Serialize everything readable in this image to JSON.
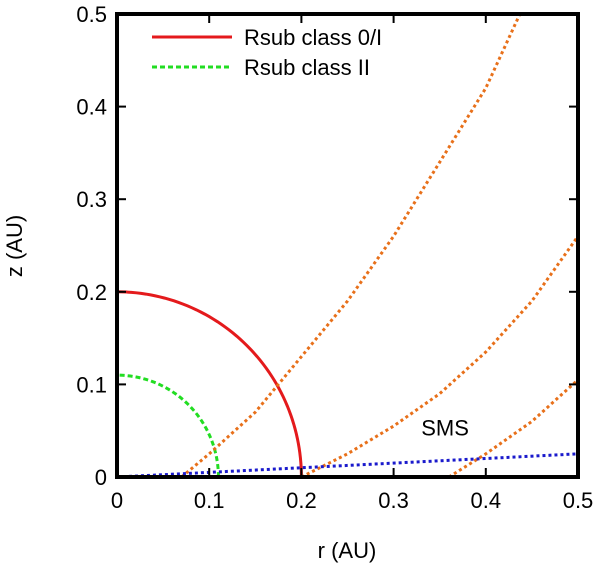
{
  "chart_data": {
    "type": "line",
    "title": "",
    "xlabel": "r (AU)",
    "ylabel": "z (AU)",
    "xlim": [
      0,
      0.5
    ],
    "ylim": [
      0,
      0.5
    ],
    "x_ticks": [
      "0",
      "0.1",
      "0.2",
      "0.3",
      "0.4",
      "0.5"
    ],
    "y_ticks": [
      "0",
      "0.1",
      "0.2",
      "0.3",
      "0.4",
      "0.5"
    ],
    "grid": false,
    "legend_position": "top-left",
    "series": [
      {
        "name": "Rsub class 0/I",
        "shape": "quarter-circle",
        "radius": 0.2,
        "color": "#e41a1c",
        "dash": "solid",
        "in_legend": true
      },
      {
        "name": "Rsub class II",
        "shape": "quarter-circle",
        "radius": 0.11,
        "color": "#22dd22",
        "dash": "dashed",
        "in_legend": true
      },
      {
        "name": "",
        "shape": "polyline",
        "color": "#e8701a",
        "dash": "dotted",
        "in_legend": false,
        "points": [
          [
            0.07,
            0.0
          ],
          [
            0.1,
            0.025
          ],
          [
            0.15,
            0.07
          ],
          [
            0.2,
            0.13
          ],
          [
            0.25,
            0.19
          ],
          [
            0.3,
            0.26
          ],
          [
            0.35,
            0.34
          ],
          [
            0.4,
            0.42
          ],
          [
            0.437,
            0.5
          ]
        ]
      },
      {
        "name": "",
        "shape": "polyline",
        "color": "#e8701a",
        "dash": "dotted",
        "in_legend": false,
        "points": [
          [
            0.2,
            0.0
          ],
          [
            0.25,
            0.025
          ],
          [
            0.3,
            0.055
          ],
          [
            0.35,
            0.09
          ],
          [
            0.4,
            0.135
          ],
          [
            0.45,
            0.19
          ],
          [
            0.5,
            0.26
          ]
        ]
      },
      {
        "name": "",
        "shape": "polyline",
        "color": "#e8701a",
        "dash": "dotted",
        "in_legend": false,
        "points": [
          [
            0.36,
            0.0
          ],
          [
            0.4,
            0.025
          ],
          [
            0.45,
            0.06
          ],
          [
            0.5,
            0.105
          ]
        ]
      },
      {
        "name": "",
        "shape": "polyline",
        "color": "#1a1acc",
        "dash": "dotted",
        "in_legend": false,
        "points": [
          [
            0.0,
            0.0
          ],
          [
            0.5,
            0.025
          ]
        ]
      }
    ],
    "annotations": [
      {
        "text": "SMS",
        "x": 0.33,
        "y": 0.045
      }
    ]
  }
}
